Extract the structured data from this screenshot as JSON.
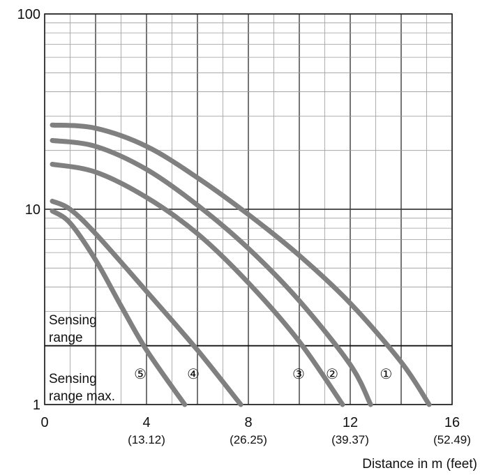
{
  "chart_data": {
    "type": "line",
    "title": "",
    "xlabel": "Distance in m (feet)",
    "ylabel": "",
    "y_scale": "log",
    "xlim": [
      0,
      16
    ],
    "ylim": [
      1,
      100
    ],
    "grid": true,
    "x_ticks": [
      {
        "value": 0,
        "label": "0",
        "sub": ""
      },
      {
        "value": 4,
        "label": "4",
        "sub": "(13.12)"
      },
      {
        "value": 8,
        "label": "8",
        "sub": "(26.25)"
      },
      {
        "value": 12,
        "label": "12",
        "sub": "(39.37)"
      },
      {
        "value": 16,
        "label": "16",
        "sub": "(52.49)"
      }
    ],
    "y_ticks": [
      {
        "value": 1,
        "label": "1"
      },
      {
        "value": 10,
        "label": "10"
      },
      {
        "value": 100,
        "label": "100"
      }
    ],
    "threshold": {
      "value": 2,
      "above_label": [
        "Sensing",
        "range"
      ],
      "below_label": [
        "Sensing",
        "range max."
      ]
    },
    "series": [
      {
        "name": "①",
        "x": [
          0.3,
          2,
          4,
          6,
          8,
          10,
          12,
          14,
          15.1
        ],
        "y": [
          27,
          26,
          21,
          14.5,
          9.4,
          5.8,
          3.3,
          1.65,
          1
        ]
      },
      {
        "name": "②",
        "x": [
          0.3,
          2,
          4,
          6,
          8,
          10,
          12,
          12.8
        ],
        "y": [
          22.5,
          21,
          16,
          10.5,
          6.3,
          3.4,
          1.6,
          1
        ]
      },
      {
        "name": "③",
        "x": [
          0.3,
          2,
          4,
          6,
          8,
          10,
          11.7
        ],
        "y": [
          17,
          15.5,
          11.5,
          7.5,
          4.2,
          2.1,
          1
        ]
      },
      {
        "name": "④",
        "x": [
          0.3,
          1,
          2,
          4,
          6,
          7.7
        ],
        "y": [
          11,
          10,
          7.5,
          3.8,
          1.9,
          1
        ]
      },
      {
        "name": "⑤",
        "x": [
          0.3,
          1,
          2,
          3,
          4,
          5.5
        ],
        "y": [
          9.8,
          8.5,
          5.5,
          3.2,
          1.9,
          1
        ]
      }
    ],
    "colors": {
      "curve": "#808080",
      "grid": "#9a9a9a",
      "major_grid": "#3a3a3a",
      "axis": "#222222"
    }
  }
}
